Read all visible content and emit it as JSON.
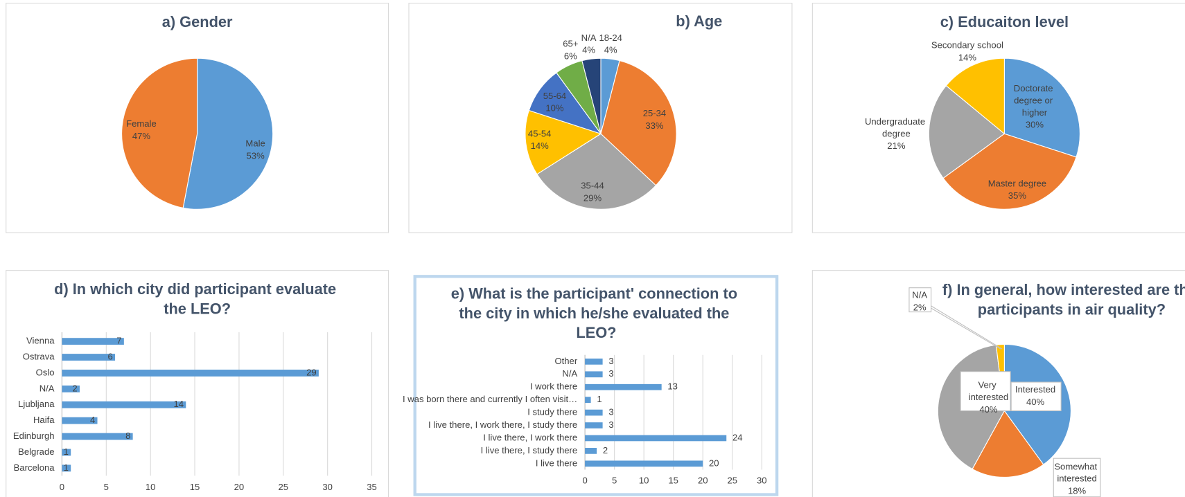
{
  "chart_data": [
    {
      "type": "pie",
      "title": "a) Gender",
      "categories": [
        "Male",
        "Female"
      ],
      "values": [
        53,
        47
      ],
      "value_labels": [
        "53%",
        "47%"
      ],
      "colors": [
        "#5b9bd5",
        "#ed7d31"
      ]
    },
    {
      "type": "pie",
      "title": "b) Age",
      "categories": [
        "18-24",
        "25-34",
        "35-44",
        "45-54",
        "55-64",
        "65+",
        "N/A"
      ],
      "values": [
        4,
        33,
        29,
        14,
        10,
        6,
        4
      ],
      "value_labels": [
        "4%",
        "33%",
        "29%",
        "14%",
        "10%",
        "6%",
        "4%"
      ],
      "colors": [
        "#5b9bd5",
        "#ed7d31",
        "#a5a5a5",
        "#ffc000",
        "#4472c4",
        "#70ad47",
        "#264478"
      ]
    },
    {
      "type": "pie",
      "title": "c) Educaiton level",
      "categories": [
        "Doctorate degree or higher",
        "Master degree",
        "Undergraduate degree",
        "Secondary school"
      ],
      "values": [
        30,
        35,
        21,
        14
      ],
      "value_labels": [
        "30%",
        "35%",
        "21%",
        "14%"
      ],
      "colors": [
        "#5b9bd5",
        "#ed7d31",
        "#a5a5a5",
        "#ffc000"
      ]
    },
    {
      "type": "bar",
      "orientation": "horizontal",
      "title": "d) In which city did participant evaluate the LEO?",
      "categories": [
        "Barcelona",
        "Belgrade",
        "Edinburgh",
        "Haifa",
        "Ljubljana",
        "N/A",
        "Oslo",
        "Ostrava",
        "Vienna"
      ],
      "values": [
        1,
        1,
        8,
        4,
        14,
        2,
        29,
        6,
        7
      ],
      "color": "#5b9bd5",
      "xlim": [
        0,
        35
      ],
      "xticks": [
        0,
        5,
        10,
        15,
        20,
        25,
        30,
        35
      ],
      "grid": true
    },
    {
      "type": "bar",
      "orientation": "horizontal",
      "title": "e) What is the participant' connection to the city in which he/she evaluated the LEO?",
      "categories": [
        "I live there",
        "I live there, I study there",
        "I live there, I work there",
        "I live there, I work there, I study there",
        "I study there",
        "I was born there and currently I often visit…",
        "I work there",
        "N/A",
        "Other"
      ],
      "values": [
        20,
        2,
        24,
        3,
        3,
        1,
        13,
        3,
        3
      ],
      "color": "#5b9bd5",
      "xlim": [
        0,
        30
      ],
      "xticks": [
        0,
        5,
        10,
        15,
        20,
        25,
        30
      ],
      "grid": true
    },
    {
      "type": "pie",
      "title": "f) In general, how interested are the participants in air quality?",
      "categories": [
        "Interested",
        "Somewhat interested",
        "Very interested",
        "N/A"
      ],
      "values": [
        40,
        18,
        40,
        2
      ],
      "value_labels": [
        "40%",
        "18%",
        "40%",
        "2%"
      ],
      "colors": [
        "#5b9bd5",
        "#ed7d31",
        "#a5a5a5",
        "#ffc000"
      ]
    }
  ]
}
